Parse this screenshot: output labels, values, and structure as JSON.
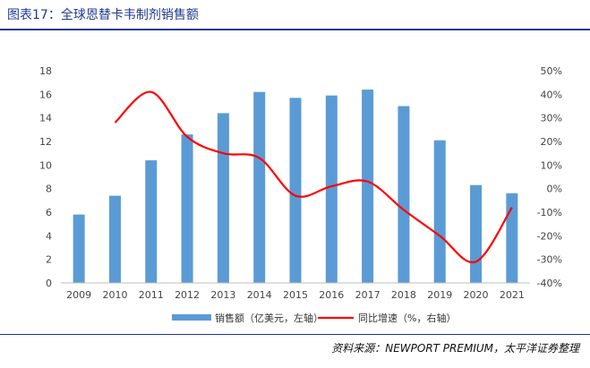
{
  "header": {
    "title": "图表17：全球恩替卡韦制剂销售额"
  },
  "footer": {
    "source": "资料来源：NEWPORT PREMIUM，太平洋证券整理"
  },
  "chart_data": {
    "type": "bar",
    "title": "全球恩替卡韦制剂销售额",
    "categories": [
      "2009",
      "2010",
      "2011",
      "2012",
      "2013",
      "2014",
      "2015",
      "2016",
      "2017",
      "2018",
      "2019",
      "2020",
      "2021"
    ],
    "series": [
      {
        "name": "销售额（亿美元，左轴）",
        "type": "bar",
        "axis": "left",
        "color": "#5b9bd5",
        "values": [
          5.8,
          7.4,
          10.4,
          12.6,
          14.4,
          16.2,
          15.7,
          15.9,
          16.4,
          15.0,
          12.1,
          8.3,
          7.6
        ]
      },
      {
        "name": "同比增速（%，右轴）",
        "type": "line",
        "axis": "right",
        "color": "#ff0000",
        "values": [
          null,
          28,
          41,
          22,
          15,
          13,
          -3,
          1,
          3,
          -9,
          -20,
          -31,
          -8
        ]
      }
    ],
    "left_axis": {
      "min": 0,
      "max": 18,
      "step": 2,
      "ticks": [
        "0",
        "2",
        "4",
        "6",
        "8",
        "10",
        "12",
        "14",
        "16",
        "18"
      ]
    },
    "right_axis": {
      "min": -40,
      "max": 50,
      "step": 10,
      "ticks": [
        "-40%",
        "-30%",
        "-20%",
        "-10%",
        "0%",
        "10%",
        "20%",
        "30%",
        "40%",
        "50%"
      ]
    },
    "legend": {
      "position": "bottom",
      "items": [
        "销售额（亿美元，左轴）",
        "同比增速（%，右轴）"
      ]
    }
  }
}
